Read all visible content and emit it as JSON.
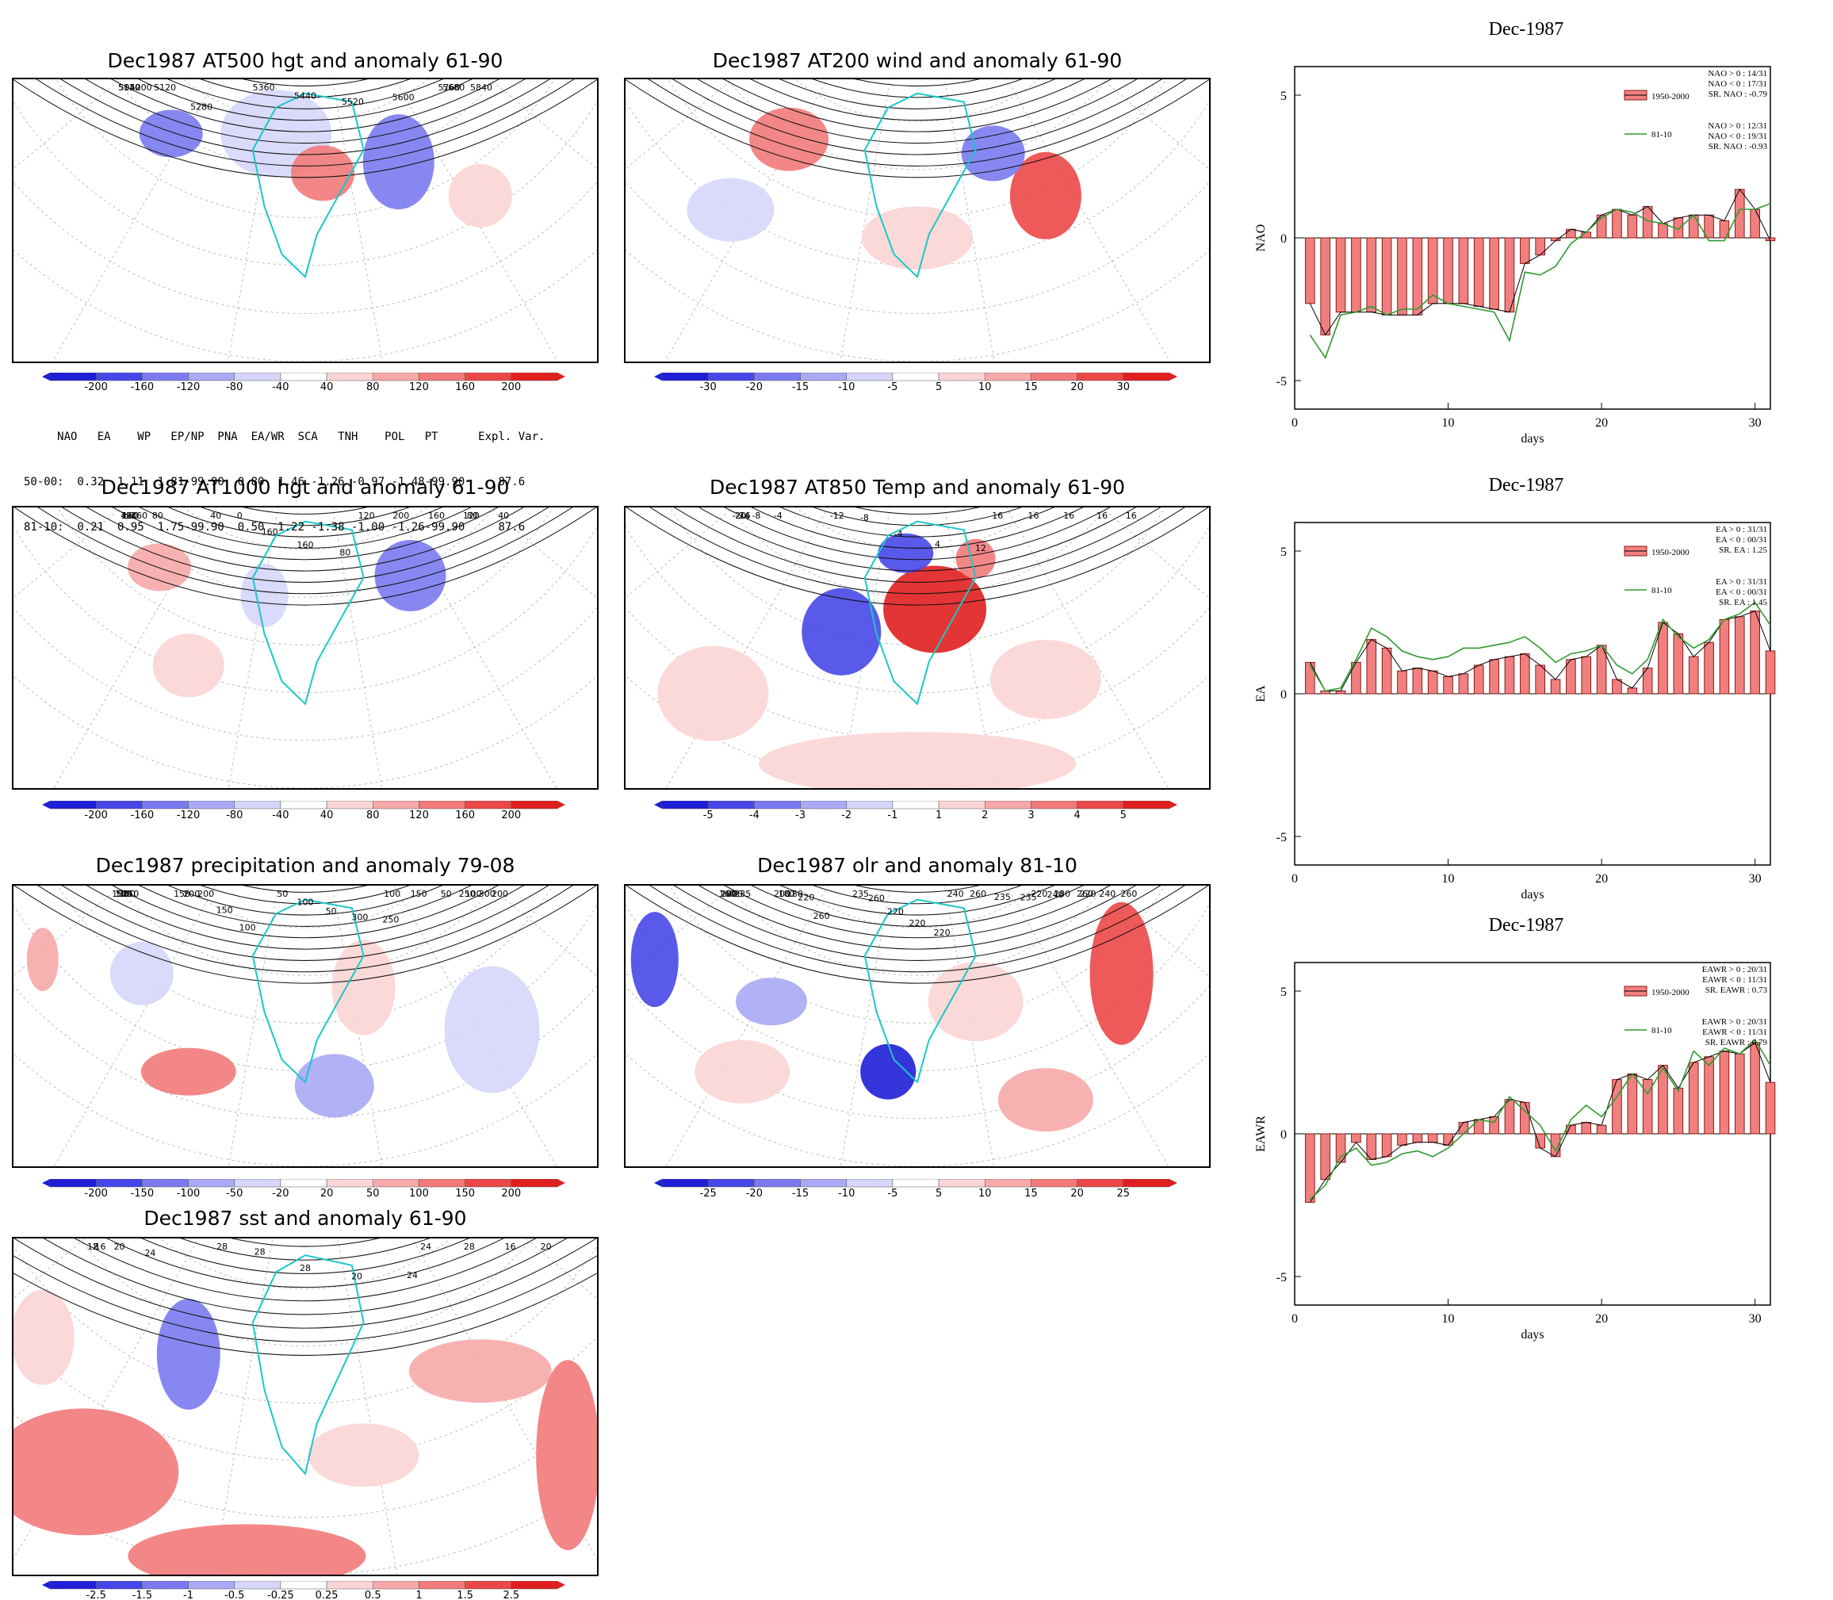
{
  "maps": [
    {
      "id": "p500",
      "title": "Dec1987 AT500 hgt and anomaly 61-90",
      "colorbar": [
        "-200",
        "-160",
        "-120",
        "-80",
        "-40",
        "40",
        "80",
        "120",
        "160",
        "200"
      ],
      "contours": [
        "5040",
        "5120",
        "5200",
        "5120",
        "5280",
        "5360",
        "5440",
        "5520",
        "5600",
        "5680",
        "5760",
        "5840"
      ]
    },
    {
      "id": "p200",
      "title": "Dec1987 AT200 wind and anomaly 61-90",
      "colorbar": [
        "-30",
        "-20",
        "-15",
        "-10",
        "-5",
        "5",
        "10",
        "15",
        "20",
        "30"
      ],
      "contours": []
    },
    {
      "id": "p1000",
      "title": "Dec1987 AT1000 hgt and anomaly 61-90",
      "colorbar": [
        "-200",
        "-160",
        "-120",
        "-80",
        "-40",
        "40",
        "80",
        "120",
        "160",
        "200"
      ],
      "contours": [
        "160",
        "40",
        "120",
        "160",
        "80",
        "40",
        "0",
        "160",
        "160",
        "80",
        "120",
        "200",
        "160",
        "120",
        "40",
        "80"
      ]
    },
    {
      "id": "p850",
      "title": "Dec1987 AT850 Temp and anomaly 61-90",
      "colorbar": [
        "-5",
        "-4",
        "-3",
        "-2",
        "-1",
        "1",
        "2",
        "3",
        "4",
        "5"
      ],
      "contours": [
        "-24",
        "-20",
        "-16",
        "-8",
        "-4",
        "-12",
        "-8",
        "-4",
        "4",
        "12",
        "16",
        "16",
        "16",
        "16",
        "16"
      ]
    },
    {
      "id": "pprec",
      "title": "Dec1987 precipitation and anomaly 79-08",
      "colorbar": [
        "-200",
        "-150",
        "-100",
        "-50",
        "-20",
        "20",
        "50",
        "100",
        "150",
        "200"
      ],
      "contours": [
        "250",
        "100",
        "150",
        "50",
        "100",
        "150",
        "200",
        "200",
        "150",
        "100",
        "50",
        "100",
        "50",
        "300",
        "250",
        "100",
        "150",
        "50",
        "100",
        "200",
        "250",
        "300"
      ]
    },
    {
      "id": "polr",
      "title": "Dec1987 olr and anomaly 81-10",
      "colorbar": [
        "-25",
        "-20",
        "-15",
        "-10",
        "-5",
        "5",
        "10",
        "15",
        "20",
        "25"
      ],
      "contours": [
        "235",
        "220",
        "180",
        "160",
        "200",
        "200",
        "180",
        "180",
        "220",
        "260",
        "235",
        "260",
        "220",
        "220",
        "220",
        "240",
        "260",
        "235",
        "235",
        "240",
        "220",
        "280",
        "260",
        "240",
        "260",
        "220"
      ]
    },
    {
      "id": "psst",
      "title": "Dec1987 sst and anomaly 61-90",
      "colorbar": [
        "-2.5",
        "-1.5",
        "-1",
        "-0.5",
        "-0.25",
        "0.25",
        "0.5",
        "1",
        "1.5",
        "2.5"
      ],
      "contours": [
        "8",
        "12",
        "16",
        "20",
        "24",
        "28",
        "28",
        "28",
        "20",
        "24",
        "24",
        "28",
        "16",
        "20"
      ]
    }
  ],
  "index_table": {
    "header": "     NAO   EA    WP   EP/NP  PNA  EA/WR  SCA   TNH    POL   PT      Expl. Var.",
    "row1": "50-00:  0.32  1.11  1.81-99.90  0.80  1.46 -1.26 -0.97 -1.48-99.90     87.6",
    "row2": "81-10:  0.21  0.95  1.75-99.90  0.50  1.22 -1.38 -1.00 -1.26-99.90     87.6"
  },
  "chart_data": [
    {
      "type": "bar",
      "id": "nao",
      "title": "Dec-1987",
      "xlabel": "days",
      "ylabel": "NAO",
      "xlim": [
        0,
        31
      ],
      "ylim": [
        -6,
        6
      ],
      "xticks": [
        "0",
        "10",
        "20",
        "30"
      ],
      "yticks": [
        "5",
        "0",
        "-5"
      ],
      "legend_bar": "1950-2000",
      "legend_line": "81-10",
      "stats1": [
        "NAO > 0 : 14/31",
        "NAO < 0 : 17/31",
        "SR. NAO : -0.79"
      ],
      "stats2": [
        "NAO > 0 : 12/31",
        "NAO < 0 : 19/31",
        "SR. NAO : -0.93"
      ],
      "x": [
        1,
        2,
        3,
        4,
        5,
        6,
        7,
        8,
        9,
        10,
        11,
        12,
        13,
        14,
        15,
        16,
        17,
        18,
        19,
        20,
        21,
        22,
        23,
        24,
        25,
        26,
        27,
        28,
        29,
        30,
        31
      ],
      "series": [
        {
          "name": "1950-2000",
          "values": [
            -2.3,
            -3.4,
            -2.6,
            -2.6,
            -2.6,
            -2.7,
            -2.7,
            -2.7,
            -2.3,
            -2.3,
            -2.3,
            -2.4,
            -2.5,
            -2.6,
            -0.9,
            -0.6,
            -0.1,
            0.3,
            0.2,
            0.8,
            1.0,
            0.8,
            1.1,
            0.5,
            0.7,
            0.8,
            0.8,
            0.6,
            1.7,
            1.0,
            -0.1
          ]
        },
        {
          "name": "81-10",
          "values": [
            -3.4,
            -4.2,
            -2.7,
            -2.6,
            -2.4,
            -2.7,
            -2.5,
            -2.5,
            -2.0,
            -2.3,
            -2.4,
            -2.5,
            -2.6,
            -3.6,
            -1.2,
            -1.3,
            -1.0,
            -0.2,
            0.2,
            0.7,
            1.0,
            0.9,
            0.6,
            0.5,
            0.3,
            0.8,
            -0.1,
            -0.1,
            1.0,
            1.0,
            1.2
          ]
        }
      ]
    },
    {
      "type": "bar",
      "id": "ea",
      "title": "Dec-1987",
      "xlabel": "days",
      "ylabel": "EA",
      "xlim": [
        0,
        31
      ],
      "ylim": [
        -6,
        6
      ],
      "xticks": [
        "0",
        "10",
        "20",
        "30"
      ],
      "yticks": [
        "5",
        "0",
        "-5"
      ],
      "legend_bar": "1950-2000",
      "legend_line": "81-10",
      "stats1": [
        "EA > 0 : 31/31",
        "EA < 0 : 00/31",
        "SR. EA :  1.25"
      ],
      "stats2": [
        "EA > 0 : 31/31",
        "EA < 0 : 00/31",
        "SR. EA :  1.45"
      ],
      "x": [
        1,
        2,
        3,
        4,
        5,
        6,
        7,
        8,
        9,
        10,
        11,
        12,
        13,
        14,
        15,
        16,
        17,
        18,
        19,
        20,
        21,
        22,
        23,
        24,
        25,
        26,
        27,
        28,
        29,
        30,
        31
      ],
      "series": [
        {
          "name": "1950-2000",
          "values": [
            1.1,
            0.1,
            0.1,
            1.1,
            1.9,
            1.6,
            0.8,
            0.9,
            0.8,
            0.6,
            0.7,
            1.0,
            1.2,
            1.3,
            1.4,
            1.0,
            0.5,
            1.2,
            1.3,
            1.7,
            0.5,
            0.2,
            0.9,
            2.5,
            2.1,
            1.3,
            1.8,
            2.6,
            2.7,
            2.9,
            1.5
          ]
        },
        {
          "name": "81-10",
          "values": [
            1.0,
            0.1,
            0.2,
            1.2,
            2.3,
            2.0,
            1.5,
            1.3,
            1.2,
            1.3,
            1.6,
            1.6,
            1.7,
            1.8,
            2.0,
            1.6,
            1.1,
            1.4,
            1.5,
            1.7,
            1.0,
            0.7,
            1.2,
            2.6,
            2.0,
            1.6,
            1.9,
            2.6,
            2.8,
            3.2,
            2.4
          ]
        }
      ]
    },
    {
      "type": "bar",
      "id": "eawr",
      "title": "Dec-1987",
      "xlabel": "days",
      "ylabel": "EAWR",
      "xlim": [
        0,
        31
      ],
      "ylim": [
        -6,
        6
      ],
      "xticks": [
        "0",
        "10",
        "20",
        "30"
      ],
      "yticks": [
        "5",
        "0",
        "-5"
      ],
      "legend_bar": "1950-2000",
      "legend_line": "81-10",
      "stats1": [
        "EAWR > 0 : 20/31",
        "EAWR < 0 : 11/31",
        "SR. EAWR : 0.73"
      ],
      "stats2": [
        "EAWR > 0 : 20/31",
        "EAWR < 0 : 11/31",
        "SR. EAWR : 0.79"
      ],
      "x": [
        1,
        2,
        3,
        4,
        5,
        6,
        7,
        8,
        9,
        10,
        11,
        12,
        13,
        14,
        15,
        16,
        17,
        18,
        19,
        20,
        21,
        22,
        23,
        24,
        25,
        26,
        27,
        28,
        29,
        30,
        31
      ],
      "series": [
        {
          "name": "1950-2000",
          "values": [
            -2.4,
            -1.6,
            -1.0,
            -0.3,
            -0.9,
            -0.8,
            -0.4,
            -0.3,
            -0.3,
            -0.4,
            0.4,
            0.5,
            0.6,
            1.2,
            1.1,
            -0.5,
            -0.8,
            0.3,
            0.4,
            0.3,
            1.9,
            2.1,
            1.9,
            2.4,
            1.6,
            2.5,
            2.7,
            2.9,
            2.8,
            3.2,
            1.8
          ]
        },
        {
          "name": "81-10",
          "values": [
            -2.3,
            -1.8,
            -0.8,
            -0.5,
            -1.1,
            -1.0,
            -0.7,
            -0.6,
            -0.8,
            -0.5,
            0.0,
            0.5,
            0.4,
            1.3,
            0.8,
            0.3,
            -0.6,
            0.5,
            1.0,
            0.6,
            1.3,
            2.1,
            1.4,
            2.3,
            1.5,
            2.9,
            2.4,
            3.0,
            2.8,
            3.3,
            2.4
          ]
        }
      ]
    }
  ]
}
